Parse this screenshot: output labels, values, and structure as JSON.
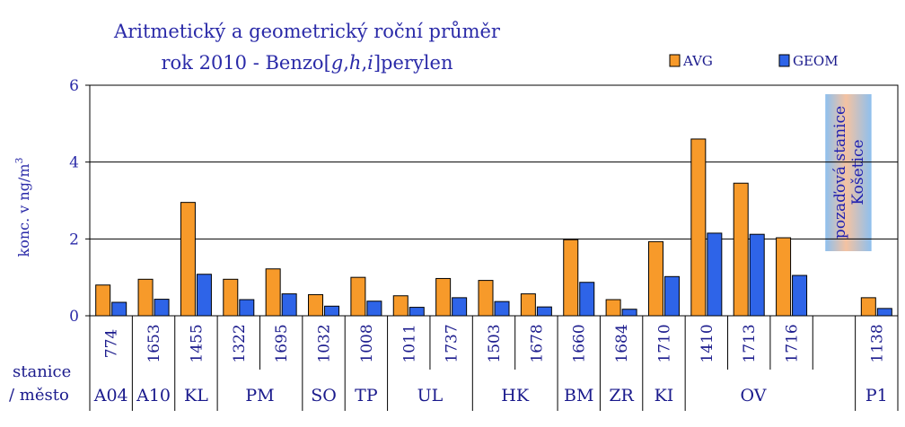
{
  "chart_data": {
    "type": "bar",
    "title_line1": "Aritmetický a geometrický roční průměr",
    "title_line2_prefix": "rok 2010 - Benzo[",
    "title_line2_g": "g",
    "title_line2_sep1": ",",
    "title_line2_h": "h",
    "title_line2_sep2": ",",
    "title_line2_i": "i",
    "title_line2_suffix": "]perylen",
    "ylabel": "konc. v ng/m",
    "ylabel_sup": "3",
    "ylim": [
      0,
      6
    ],
    "yticks": [
      "0",
      "2",
      "4",
      "6"
    ],
    "grid": true,
    "legend_position": "top-right",
    "series": [
      {
        "name": "AVG",
        "color": "#f79a2a",
        "values": [
          0.8,
          0.95,
          2.95,
          0.95,
          1.22,
          0.55,
          1.0,
          0.52,
          0.97,
          0.92,
          0.57,
          1.98,
          0.42,
          1.93,
          4.6,
          3.45,
          2.03,
          null,
          0.47
        ]
      },
      {
        "name": "GEOM",
        "color": "#2e64e8",
        "values": [
          0.35,
          0.43,
          1.08,
          0.42,
          0.57,
          0.25,
          0.38,
          0.22,
          0.47,
          0.37,
          0.23,
          0.87,
          0.17,
          1.02,
          2.15,
          2.12,
          1.05,
          null,
          0.19
        ]
      }
    ],
    "categories": [
      "774",
      "1653",
      "1455",
      "1322",
      "1695",
      "1032",
      "1008",
      "1011",
      "1737",
      "1503",
      "1678",
      "1660",
      "1684",
      "1710",
      "1410",
      "1713",
      "1716",
      "",
      "1138"
    ],
    "groups": [
      {
        "label": "A04",
        "span": 1
      },
      {
        "label": "A10",
        "span": 1
      },
      {
        "label": "KL",
        "span": 1
      },
      {
        "label": "PM",
        "span": 2
      },
      {
        "label": "SO",
        "span": 1
      },
      {
        "label": "TP",
        "span": 1
      },
      {
        "label": "UL",
        "span": 2
      },
      {
        "label": "HK",
        "span": 2
      },
      {
        "label": "BM",
        "span": 1
      },
      {
        "label": "ZR",
        "span": 1
      },
      {
        "label": "KI",
        "span": 1
      },
      {
        "label": "OV",
        "span": 4
      },
      {
        "label": "P1",
        "span": 1
      }
    ],
    "row_label_1": "stanice",
    "row_label_2": "/ město",
    "background_band": {
      "line1": "pozaďová stanice",
      "line2": "Košetice",
      "category_index": 17
    }
  }
}
